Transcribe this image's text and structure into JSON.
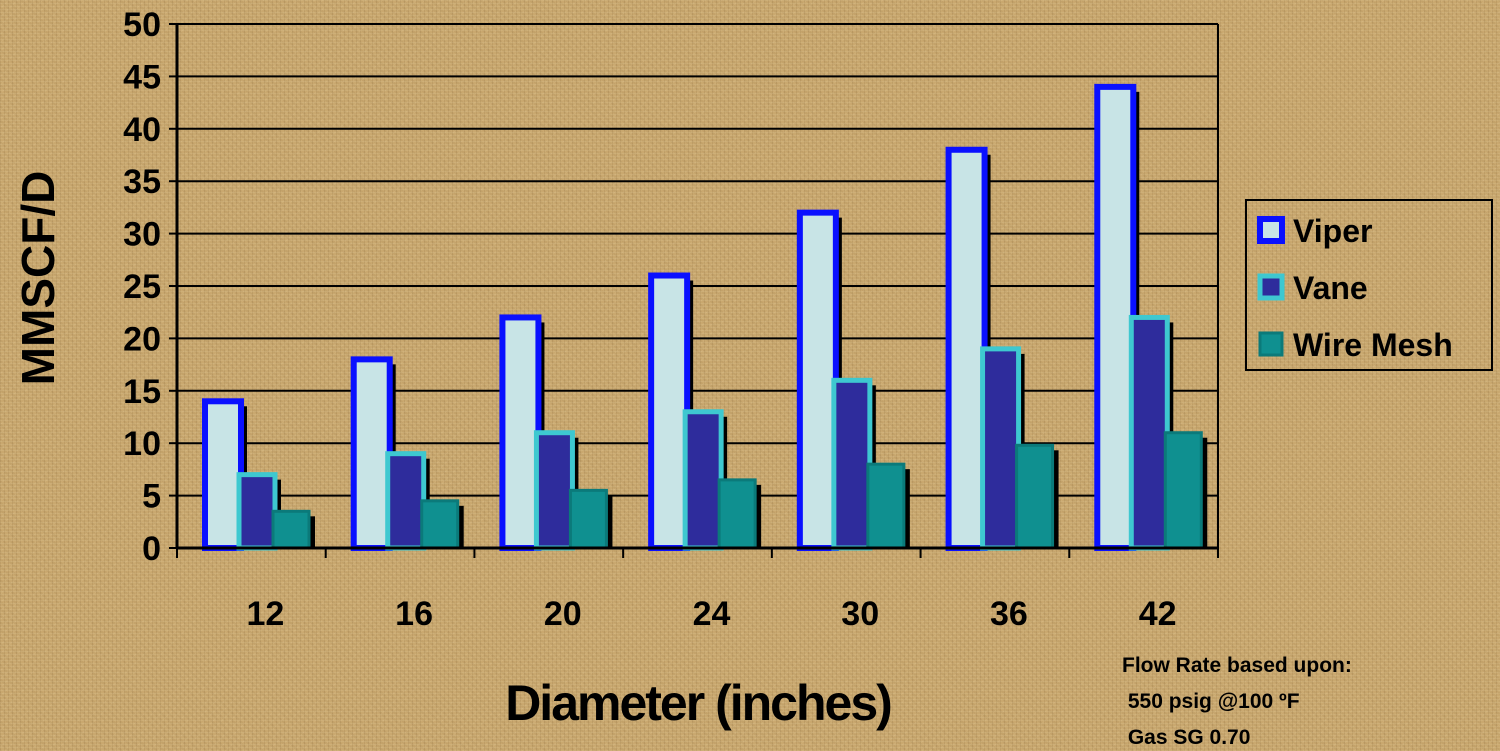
{
  "chart_data": {
    "type": "bar",
    "categories": [
      "12",
      "16",
      "20",
      "24",
      "30",
      "36",
      "42"
    ],
    "series": [
      {
        "name": "Viper",
        "values": [
          14,
          18,
          22,
          26,
          32,
          38,
          44
        ]
      },
      {
        "name": "Vane",
        "values": [
          7,
          9,
          11,
          13,
          16,
          19,
          22
        ]
      },
      {
        "name": "Wire Mesh",
        "values": [
          3.5,
          4.5,
          5.5,
          6.5,
          8,
          9.8,
          11
        ]
      }
    ],
    "xlabel": "Diameter (inches)",
    "ylabel": "MMSCF/D",
    "ylim": [
      0,
      50
    ],
    "yticks": [
      "0",
      "5",
      "10",
      "15",
      "20",
      "25",
      "30",
      "35",
      "40",
      "45",
      "50"
    ],
    "grid": true,
    "legend_position": "right",
    "note": [
      "Flow Rate based upon:",
      " 550 psig @100 ºF",
      " Gas SG 0.70"
    ],
    "colors": {
      "viper_fill": "#c8e4e6",
      "viper_border": "#0a10ff",
      "vane_fill": "#2e2c9c",
      "vane_border": "#3ec8d0",
      "wiremesh_fill": "#0f9090",
      "wiremesh_border": "#0b7a7a",
      "shadow": "#000000"
    }
  }
}
